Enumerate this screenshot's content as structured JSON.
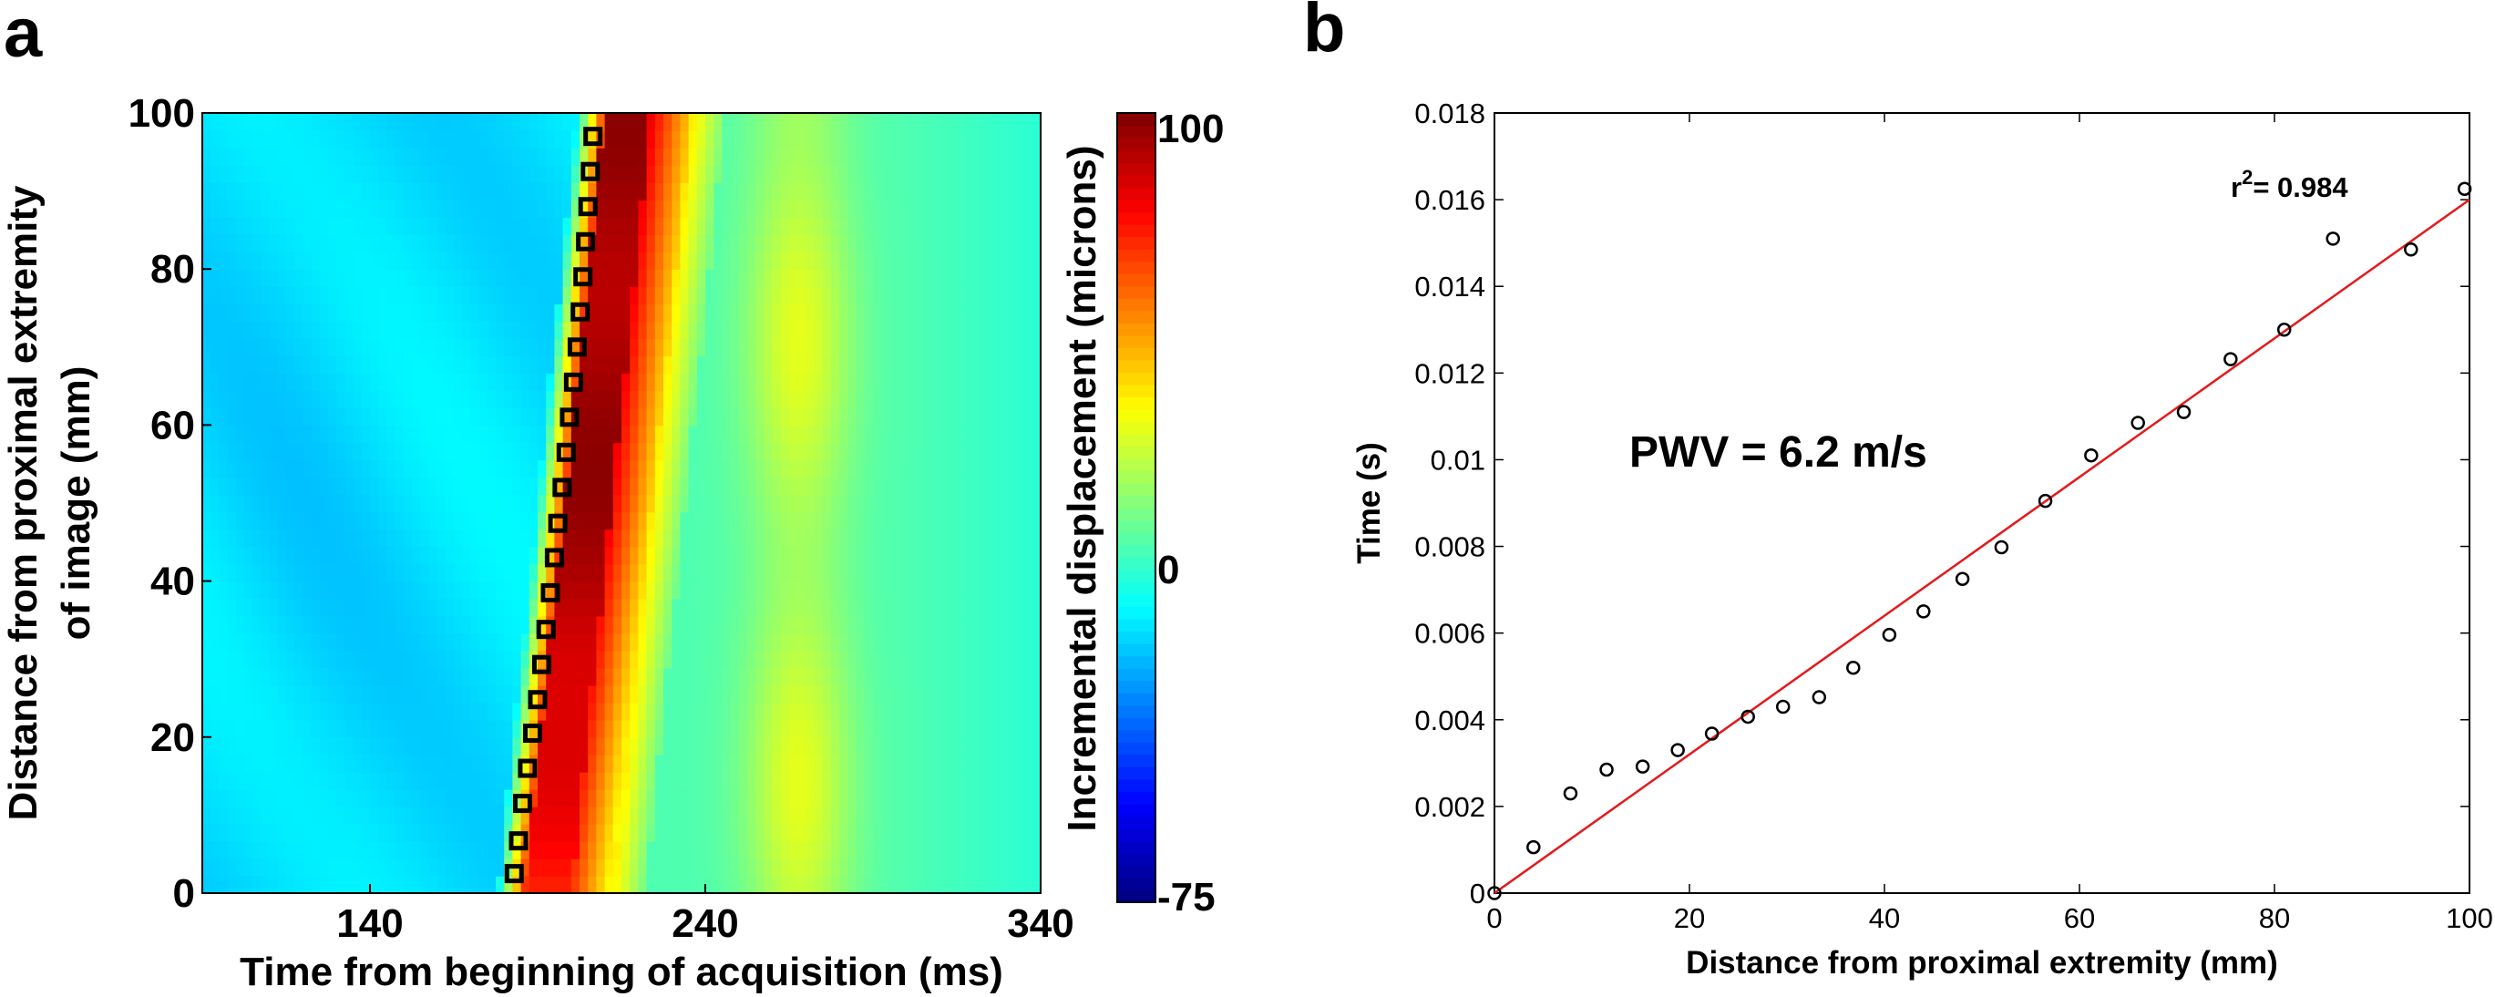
{
  "chart_data": [
    {
      "panel_label": "a",
      "type": "heatmap",
      "xlabel": "Time from beginning of acquisition (ms)",
      "ylabel_line1": "Distance from proximal extremity",
      "ylabel_line2": "of image (mm)",
      "xlim": [
        90,
        340
      ],
      "ylim": [
        0,
        100
      ],
      "xticks": [
        140,
        240,
        340
      ],
      "yticks": [
        0,
        20,
        40,
        60,
        80,
        100
      ],
      "colorbar": {
        "label": "Incremental displacement (microns)",
        "min": -75,
        "max": 100,
        "tick_labels": [
          "100",
          "0",
          "-75"
        ],
        "tick_values": [
          100,
          0,
          -75
        ]
      },
      "wavefront_markers": {
        "marker": "square",
        "points": [
          [
            183,
            2.5
          ],
          [
            184.3,
            6.7
          ],
          [
            185.5,
            11.5
          ],
          [
            187,
            16
          ],
          [
            188.5,
            20.5
          ],
          [
            190,
            24.8
          ],
          [
            191.2,
            29.3
          ],
          [
            192.5,
            33.8
          ],
          [
            193.8,
            38.5
          ],
          [
            195,
            43
          ],
          [
            196,
            47.4
          ],
          [
            197.3,
            52
          ],
          [
            198.5,
            56.5
          ],
          [
            199.5,
            61
          ],
          [
            200.7,
            65.5
          ],
          [
            201.8,
            70
          ],
          [
            202.7,
            74.5
          ],
          [
            203.5,
            79
          ],
          [
            204.3,
            83.5
          ],
          [
            205,
            88
          ],
          [
            205.7,
            92.5
          ],
          [
            206.5,
            97
          ]
        ]
      },
      "colors": {
        "jet_dark_blue": "#000080",
        "jet_dark_red": "#800000",
        "marker_stroke": "#000000"
      }
    },
    {
      "panel_label": "b",
      "type": "scatter",
      "xlabel": "Distance from proximal extremity (mm)",
      "ylabel": "Time (s)",
      "xlim": [
        0,
        100
      ],
      "ylim": [
        0,
        0.018
      ],
      "xticks": [
        0,
        20,
        40,
        60,
        80,
        100
      ],
      "yticks": [
        "0",
        "0.002",
        "0.004",
        "0.006",
        "0.008",
        "0.01",
        "0.012",
        "0.014",
        "0.016",
        "0.018"
      ],
      "annotation": "PWV = 6.2 m/s",
      "r2_prefix": "r",
      "r2_sup": "2",
      "r2_value": "= 0.984",
      "points": [
        [
          0,
          0
        ],
        [
          4,
          0.00106
        ],
        [
          7.8,
          0.0023
        ],
        [
          11.5,
          0.00285
        ],
        [
          15.2,
          0.00292
        ],
        [
          18.8,
          0.0033
        ],
        [
          22.3,
          0.00368
        ],
        [
          26,
          0.00407
        ],
        [
          29.6,
          0.0043
        ],
        [
          33.3,
          0.00452
        ],
        [
          36.8,
          0.0052
        ],
        [
          40.5,
          0.00596
        ],
        [
          44,
          0.0065
        ],
        [
          48,
          0.00725
        ],
        [
          52,
          0.00798
        ],
        [
          56.5,
          0.00905
        ],
        [
          61.2,
          0.0101
        ],
        [
          66,
          0.01085
        ],
        [
          70.7,
          0.0111
        ],
        [
          75.5,
          0.01232
        ],
        [
          81,
          0.013
        ],
        [
          86,
          0.0151
        ],
        [
          94,
          0.01485
        ],
        [
          99.5,
          0.01625
        ]
      ],
      "fit_line": {
        "x": [
          0,
          100
        ],
        "y": [
          0,
          0.016
        ]
      },
      "colors": {
        "fit_line": "#e31a1c",
        "markers": "#000000"
      }
    }
  ]
}
